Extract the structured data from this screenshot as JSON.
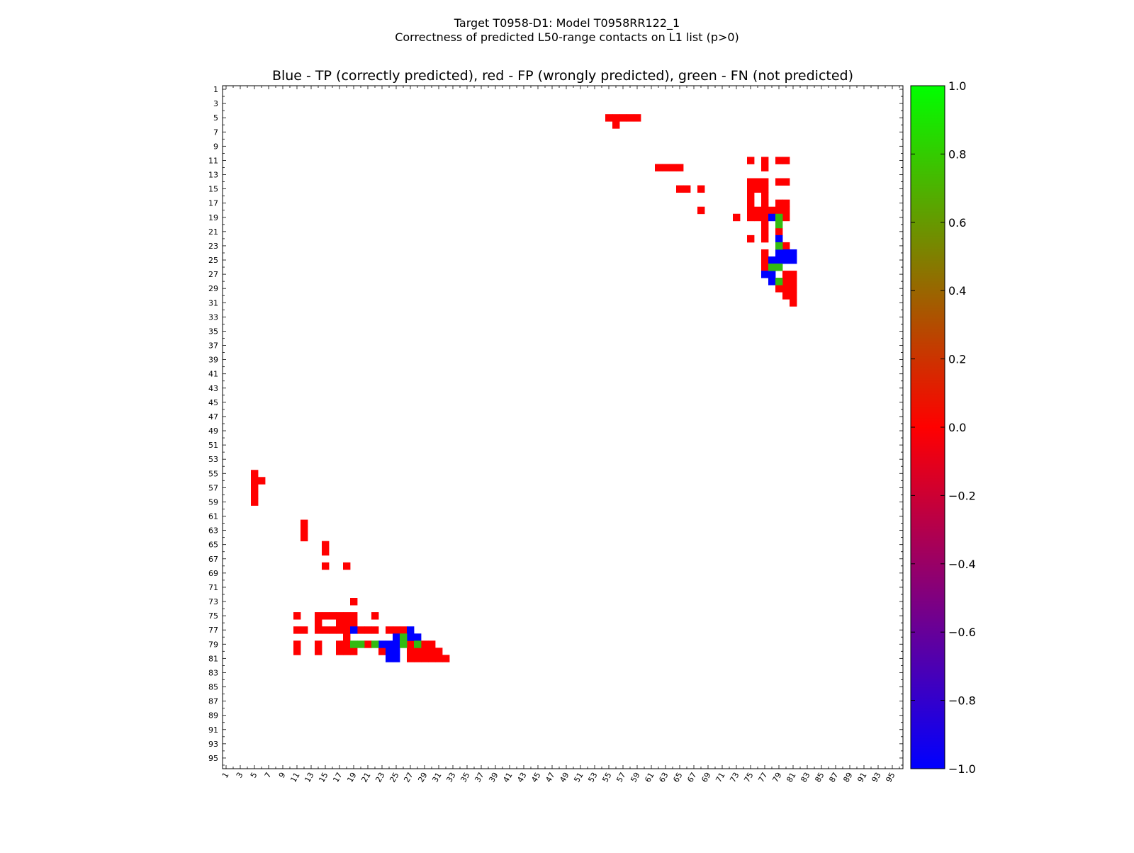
{
  "chart_data": {
    "type": "heatmap",
    "title_line1": "Target T0958-D1: Model T0958RR122_1",
    "title_line2": "Correctness of predicted L50-range contacts on L1 list (p>0)",
    "subtitle": "Blue - TP (correctly predicted), red - FP (wrongly predicted), green - FN (not predicted)",
    "xlabel": "",
    "ylabel": "",
    "grid": false,
    "xlim": [
      1,
      96
    ],
    "ylim": [
      1,
      96
    ],
    "tick_labels": [
      "1",
      "3",
      "5",
      "7",
      "9",
      "11",
      "13",
      "15",
      "17",
      "19",
      "21",
      "23",
      "25",
      "27",
      "29",
      "31",
      "33",
      "35",
      "37",
      "39",
      "41",
      "43",
      "45",
      "47",
      "49",
      "51",
      "53",
      "55",
      "57",
      "59",
      "61",
      "63",
      "65",
      "67",
      "69",
      "71",
      "73",
      "75",
      "77",
      "79",
      "81",
      "83",
      "85",
      "87",
      "89",
      "91",
      "93",
      "95"
    ],
    "colorbar": {
      "min": -1.0,
      "max": 1.0,
      "tick_labels": [
        "1.0",
        "0.8",
        "0.6",
        "0.4",
        "0.2",
        "0.0",
        "−0.2",
        "−0.4",
        "−0.6",
        "−0.8",
        "−1.0"
      ],
      "tick_values": [
        1.0,
        0.8,
        0.6,
        0.4,
        0.2,
        0.0,
        -0.2,
        -0.4,
        -0.6,
        -0.8,
        -1.0
      ]
    },
    "categories": {
      "TP": {
        "value": -1.0,
        "color": "#0000ff"
      },
      "FP": {
        "value": 0.0,
        "color": "#ff0000"
      },
      "FN": {
        "value": 0.6,
        "color": "#33bb11"
      }
    },
    "cells": {
      "FP": [
        [
          55,
          5
        ],
        [
          56,
          5
        ],
        [
          57,
          5
        ],
        [
          58,
          5
        ],
        [
          59,
          5
        ],
        [
          56,
          6
        ],
        [
          62,
          12
        ],
        [
          63,
          12
        ],
        [
          64,
          12
        ],
        [
          65,
          12
        ],
        [
          65,
          15
        ],
        [
          66,
          15
        ],
        [
          68,
          15
        ],
        [
          68,
          18
        ],
        [
          73,
          19
        ],
        [
          75,
          11
        ],
        [
          77,
          11
        ],
        [
          77,
          12
        ],
        [
          79,
          11
        ],
        [
          80,
          11
        ],
        [
          79,
          14
        ],
        [
          80,
          14
        ],
        [
          75,
          14
        ],
        [
          76,
          14
        ],
        [
          77,
          14
        ],
        [
          75,
          15
        ],
        [
          76,
          15
        ],
        [
          77,
          15
        ],
        [
          75,
          16
        ],
        [
          77,
          16
        ],
        [
          75,
          17
        ],
        [
          77,
          17
        ],
        [
          79,
          17
        ],
        [
          80,
          17
        ],
        [
          75,
          18
        ],
        [
          76,
          18
        ],
        [
          77,
          18
        ],
        [
          78,
          18
        ],
        [
          79,
          18
        ],
        [
          80,
          18
        ],
        [
          75,
          19
        ],
        [
          76,
          19
        ],
        [
          77,
          19
        ],
        [
          80,
          19
        ],
        [
          77,
          20
        ],
        [
          77,
          21
        ],
        [
          79,
          21
        ],
        [
          75,
          22
        ],
        [
          77,
          22
        ],
        [
          80,
          23
        ],
        [
          77,
          24
        ],
        [
          77,
          25
        ],
        [
          77,
          26
        ],
        [
          80,
          27
        ],
        [
          81,
          27
        ],
        [
          79,
          28
        ],
        [
          80,
          28
        ],
        [
          81,
          28
        ],
        [
          79,
          29
        ],
        [
          80,
          29
        ],
        [
          81,
          29
        ],
        [
          80,
          30
        ],
        [
          81,
          30
        ],
        [
          81,
          31
        ],
        [
          5,
          55
        ],
        [
          5,
          56
        ],
        [
          6,
          56
        ],
        [
          5,
          57
        ],
        [
          5,
          58
        ],
        [
          5,
          59
        ],
        [
          12,
          62
        ],
        [
          12,
          63
        ],
        [
          12,
          64
        ],
        [
          15,
          65
        ],
        [
          15,
          66
        ],
        [
          15,
          68
        ],
        [
          18,
          68
        ],
        [
          19,
          73
        ],
        [
          11,
          75
        ],
        [
          22,
          75
        ],
        [
          14,
          75
        ],
        [
          15,
          75
        ],
        [
          16,
          75
        ],
        [
          17,
          75
        ],
        [
          18,
          75
        ],
        [
          19,
          75
        ],
        [
          14,
          76
        ],
        [
          17,
          76
        ],
        [
          18,
          76
        ],
        [
          19,
          76
        ],
        [
          11,
          77
        ],
        [
          12,
          77
        ],
        [
          14,
          77
        ],
        [
          15,
          77
        ],
        [
          16,
          77
        ],
        [
          17,
          77
        ],
        [
          18,
          77
        ],
        [
          20,
          77
        ],
        [
          21,
          77
        ],
        [
          22,
          77
        ],
        [
          24,
          77
        ],
        [
          25,
          77
        ],
        [
          26,
          77
        ],
        [
          18,
          78
        ],
        [
          11,
          79
        ],
        [
          14,
          79
        ],
        [
          17,
          79
        ],
        [
          18,
          79
        ],
        [
          21,
          79
        ],
        [
          27,
          79
        ],
        [
          29,
          79
        ],
        [
          30,
          79
        ],
        [
          11,
          80
        ],
        [
          14,
          80
        ],
        [
          17,
          80
        ],
        [
          18,
          80
        ],
        [
          19,
          80
        ],
        [
          23,
          80
        ],
        [
          27,
          80
        ],
        [
          28,
          80
        ],
        [
          29,
          80
        ],
        [
          30,
          80
        ],
        [
          31,
          80
        ],
        [
          27,
          81
        ],
        [
          28,
          81
        ],
        [
          29,
          81
        ],
        [
          30,
          81
        ],
        [
          31,
          81
        ],
        [
          32,
          81
        ]
      ],
      "TP": [
        [
          78,
          19
        ],
        [
          79,
          22
        ],
        [
          79,
          24
        ],
        [
          80,
          24
        ],
        [
          81,
          24
        ],
        [
          78,
          25
        ],
        [
          79,
          25
        ],
        [
          80,
          25
        ],
        [
          81,
          25
        ],
        [
          78,
          27
        ],
        [
          77,
          27
        ],
        [
          78,
          28
        ],
        [
          19,
          77
        ],
        [
          27,
          77
        ],
        [
          25,
          78
        ],
        [
          27,
          78
        ],
        [
          28,
          78
        ],
        [
          23,
          79
        ],
        [
          25,
          79
        ],
        [
          24,
          79
        ],
        [
          24,
          80
        ],
        [
          25,
          80
        ],
        [
          24,
          81
        ],
        [
          25,
          81
        ]
      ],
      "FN": [
        [
          79,
          19
        ],
        [
          79,
          20
        ],
        [
          79,
          23
        ],
        [
          78,
          26
        ],
        [
          79,
          26
        ],
        [
          79,
          28
        ],
        [
          19,
          79
        ],
        [
          20,
          79
        ],
        [
          22,
          79
        ],
        [
          26,
          78
        ],
        [
          26,
          79
        ],
        [
          28,
          79
        ]
      ]
    }
  }
}
